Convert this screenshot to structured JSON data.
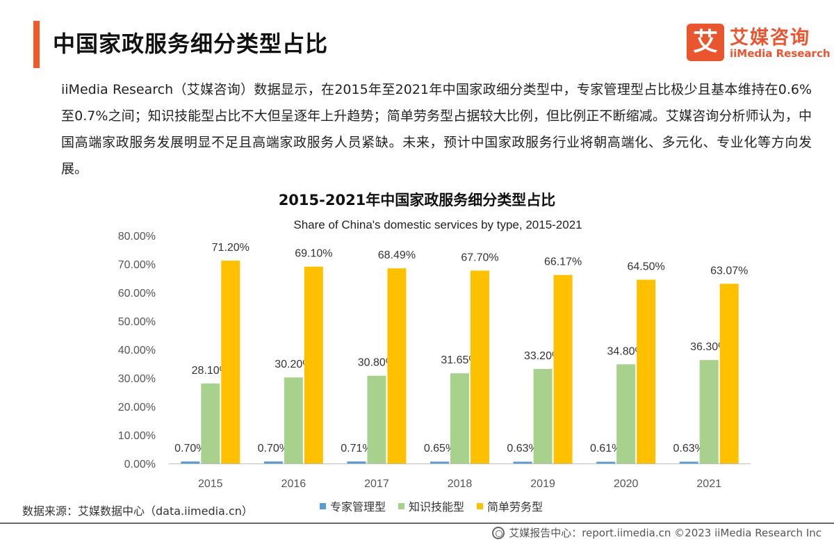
{
  "header": {
    "title": "中国家政服务细分类型占比",
    "accent_color": "#F05A28"
  },
  "logo": {
    "mark_char": "艾",
    "name_cn": "艾媒咨询",
    "name_en": "iiMedia Research",
    "color": "#E8552E"
  },
  "description": "iiMedia Research（艾媒咨询）数据显示，在2015年至2021年中国家政细分类型中，专家管理型占比极少且基本维持在0.6%至0.7%之间；知识技能型占比不大但呈逐年上升趋势；简单劳务型占据较大比例，但比例正不断缩减。艾媒咨询分析师认为，中国高端家政服务发展明显不足且高端家政服务人员紧缺。未来，预计中国家政服务行业将朝高端化、多元化、专业化等方向发展。",
  "chart_data": {
    "type": "bar",
    "title": "2015-2021年中国家政服务细分类型占比",
    "subtitle": "Share of China's domestic services by type, 2015-2021",
    "categories": [
      "2015",
      "2016",
      "2017",
      "2018",
      "2019",
      "2020",
      "2021"
    ],
    "series": [
      {
        "name": "专家管理型",
        "color": "#5B9BD5",
        "values": [
          0.7,
          0.7,
          0.71,
          0.65,
          0.63,
          0.61,
          0.63
        ],
        "labels": [
          "0.70%",
          "0.70%",
          "0.71%",
          "0.65%",
          "0.63%",
          "0.61%",
          "0.63%"
        ]
      },
      {
        "name": "知识技能型",
        "color": "#A9D18E",
        "values": [
          28.1,
          30.2,
          30.8,
          31.65,
          33.2,
          34.8,
          36.3
        ],
        "labels": [
          "28.10%",
          "30.20%",
          "30.80%",
          "31.65%",
          "33.20%",
          "34.80%",
          "36.30%"
        ]
      },
      {
        "name": "简单劳务型",
        "color": "#FFC000",
        "values": [
          71.2,
          69.1,
          68.49,
          67.7,
          66.17,
          64.5,
          63.07
        ],
        "labels": [
          "71.20%",
          "69.10%",
          "68.49%",
          "67.70%",
          "66.17%",
          "64.50%",
          "63.07%"
        ]
      }
    ],
    "yticks": [
      "0.00%",
      "10.00%",
      "20.00%",
      "30.00%",
      "40.00%",
      "50.00%",
      "60.00%",
      "70.00%",
      "80.00%"
    ],
    "ylim": [
      0,
      80
    ],
    "grid": false,
    "legend_position": "bottom"
  },
  "source": "数据来源：艾媒数据中心（data.iimedia.cn）",
  "footer": {
    "text": "艾媒报告中心：report.iimedia.cn  ©2023  iiMedia Research  Inc"
  }
}
